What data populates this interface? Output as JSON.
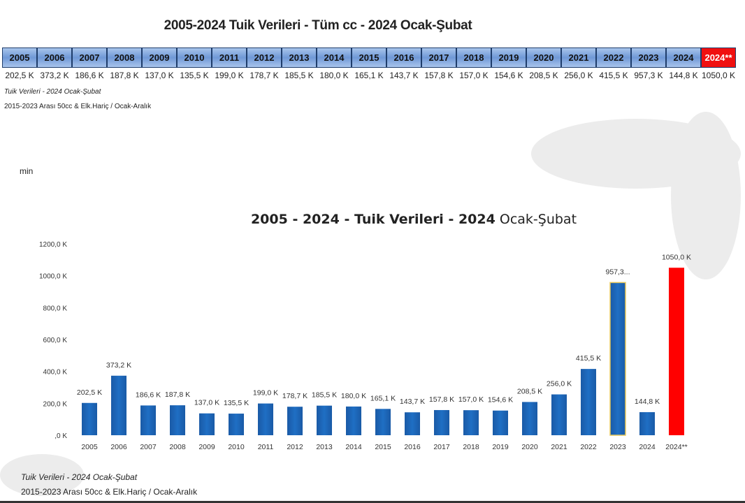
{
  "header": {
    "title": "2005-2024 Tuik Verileri - Tüm cc - 2024 Ocak-Şubat",
    "footnote_1": "Tuik Verileri - 2024 Ocak-Şubat",
    "footnote_2": "2015-2023 Arası 50cc & Elk.Hariç / Ocak-Aralık"
  },
  "table": {
    "years": [
      "2005",
      "2006",
      "2007",
      "2008",
      "2009",
      "2010",
      "2011",
      "2012",
      "2013",
      "2014",
      "2015",
      "2016",
      "2017",
      "2018",
      "2019",
      "2020",
      "2021",
      "2022",
      "2023",
      "2024",
      "2024**"
    ],
    "values": [
      "202,5 K",
      "373,2 K",
      "186,6 K",
      "187,8 K",
      "137,0 K",
      "135,5 K",
      "199,0 K",
      "178,7 K",
      "185,5 K",
      "180,0 K",
      "165,1 K",
      "143,7 K",
      "157,8 K",
      "157,0 K",
      "154,6 K",
      "208,5 K",
      "256,0 K",
      "415,5 K",
      "957,3 K",
      "144,8 K",
      "1050,0 K"
    ],
    "highlight_color": "#f01010"
  },
  "min_label": "min",
  "chart_data": {
    "type": "bar",
    "title_bold": "2005 - 2024 - Tuik Verileri - 2024",
    "title_rest": " Ocak-Şubat",
    "categories": [
      "2005",
      "2006",
      "2007",
      "2008",
      "2009",
      "2010",
      "2011",
      "2012",
      "2013",
      "2014",
      "2015",
      "2016",
      "2017",
      "2018",
      "2019",
      "2020",
      "2021",
      "2022",
      "2023",
      "2024",
      "2024**"
    ],
    "values": [
      202.5,
      373.2,
      186.6,
      187.8,
      137.0,
      135.5,
      199.0,
      178.7,
      185.5,
      180.0,
      165.1,
      143.7,
      157.8,
      157.0,
      154.6,
      208.5,
      256.0,
      415.5,
      957.3,
      144.8,
      1050.0
    ],
    "data_labels": [
      "202,5 K",
      "373,2 K",
      "186,6 K",
      "187,8 K",
      "137,0 K",
      "135,5 K",
      "199,0 K",
      "178,7 K",
      "185,5 K",
      "180,0 K",
      "165,1 K",
      "143,7 K",
      "157,8 K",
      "157,0 K",
      "154,6 K",
      "208,5 K",
      "256,0 K",
      "415,5 K",
      "957,3...",
      "144,8 K",
      "1050,0 K"
    ],
    "y_ticks": [
      ",0 K",
      "200,0 K",
      "400,0 K",
      "600,0 K",
      "800,0 K",
      "1000,0 K",
      "1200,0 K"
    ],
    "ylim": [
      0,
      1200
    ],
    "grid": false,
    "bar_color": "#1f6fc4",
    "highlight_color": "#ff0000",
    "highlight_category": "2024**"
  },
  "footer": {
    "note_1": "Tuik Verileri - 2024 Ocak-Şubat",
    "note_2": "2015-2023 Arası 50cc & Elk.Hariç / Ocak-Aralık"
  }
}
